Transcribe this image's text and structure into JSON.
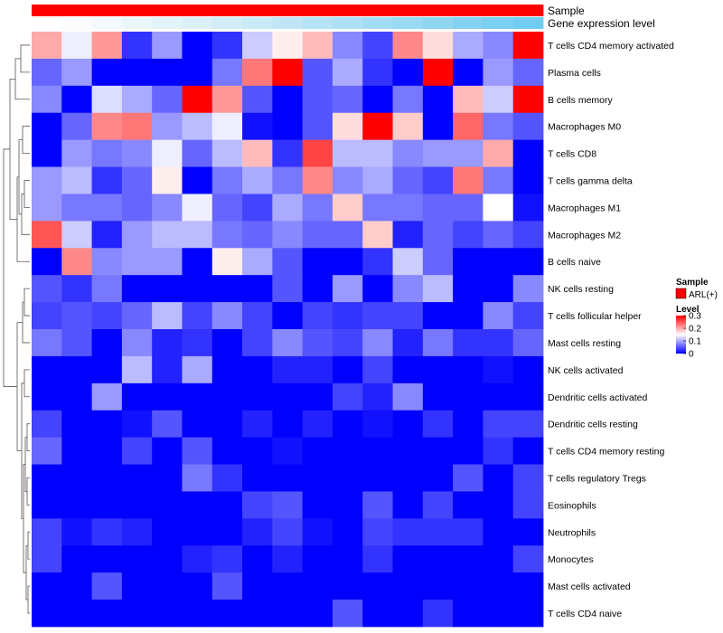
{
  "chart_data": {
    "type": "heatmap",
    "annotations": [
      {
        "name": "Sample",
        "colors": [
          "#ff0000",
          "#ff0000",
          "#ff0000",
          "#ff0000",
          "#ff0000",
          "#ff0000",
          "#ff0000",
          "#ff0000",
          "#ff0000",
          "#ff0000",
          "#ff0000",
          "#ff0000",
          "#ff0000",
          "#ff0000",
          "#ff0000",
          "#ff0000",
          "#ff0000"
        ]
      },
      {
        "name": "Gene expression level",
        "colors": [
          "#ffffff",
          "#fafcfd",
          "#f3f9fc",
          "#ebf6fb",
          "#e3f3fa",
          "#dbf0f9",
          "#d2edf8",
          "#c9eaf7",
          "#c0e6f6",
          "#b6e3f5",
          "#ade0f4",
          "#a3ddf3",
          "#99d9f2",
          "#8fd6f1",
          "#85d2f0",
          "#7bcff0",
          "#72ccf0"
        ]
      }
    ],
    "rows": [
      "T cells CD4 memory activated",
      "Plasma cells",
      "B cells memory",
      "Macrophages M0",
      "T cells CD8",
      "T cells gamma delta",
      "Macrophages M1",
      "Macrophages M2",
      "B cells naive",
      "NK cells resting",
      "T cells follicular helper",
      "Mast cells resting",
      "NK cells activated",
      "Dendritic cells activated",
      "Dendritic cells resting",
      "T cells CD4 memory resting",
      "T cells regulatory  Tregs",
      "Eosinophils",
      "Neutrophils",
      "Monocytes",
      "Mast cells activated",
      "T cells CD4 naive"
    ],
    "values": [
      [
        0.2,
        0.14,
        0.21,
        0.03,
        0.09,
        0.0,
        0.03,
        0.12,
        0.16,
        0.19,
        0.08,
        0.04,
        0.22,
        0.17,
        0.1,
        0.08,
        0.3
      ],
      [
        0.06,
        0.09,
        0.0,
        0.0,
        0.0,
        0.0,
        0.07,
        0.23,
        0.3,
        0.05,
        0.1,
        0.03,
        0.0,
        0.3,
        0.0,
        0.09,
        0.06
      ],
      [
        0.08,
        0.0,
        0.13,
        0.1,
        0.06,
        0.3,
        0.21,
        0.05,
        0.0,
        0.05,
        0.06,
        0.0,
        0.07,
        0.0,
        0.19,
        0.12,
        0.3
      ],
      [
        0.0,
        0.06,
        0.22,
        0.23,
        0.09,
        0.11,
        0.14,
        0.01,
        0.0,
        0.05,
        0.17,
        0.3,
        0.18,
        0.0,
        0.24,
        0.07,
        0.05
      ],
      [
        0.0,
        0.09,
        0.07,
        0.08,
        0.14,
        0.06,
        0.11,
        0.19,
        0.03,
        0.26,
        0.11,
        0.11,
        0.08,
        0.09,
        0.09,
        0.2,
        0.0
      ],
      [
        0.09,
        0.11,
        0.03,
        0.06,
        0.16,
        0.0,
        0.07,
        0.1,
        0.07,
        0.22,
        0.08,
        0.1,
        0.06,
        0.04,
        0.23,
        0.07,
        0.0
      ],
      [
        0.09,
        0.07,
        0.07,
        0.06,
        0.08,
        0.14,
        0.06,
        0.04,
        0.1,
        0.07,
        0.18,
        0.07,
        0.07,
        0.06,
        0.06,
        0.15,
        0.01
      ],
      [
        0.25,
        0.12,
        0.02,
        0.09,
        0.11,
        0.11,
        0.07,
        0.06,
        0.08,
        0.06,
        0.06,
        0.18,
        0.02,
        0.06,
        0.04,
        0.06,
        0.04
      ],
      [
        0.0,
        0.22,
        0.08,
        0.09,
        0.09,
        0.0,
        0.16,
        0.1,
        0.05,
        0.0,
        0.0,
        0.03,
        0.12,
        0.06,
        0.0,
        0.0,
        0.0
      ],
      [
        0.05,
        0.03,
        0.07,
        0.0,
        0.0,
        0.0,
        0.0,
        0.0,
        0.05,
        0.0,
        0.09,
        0.0,
        0.08,
        0.11,
        0.0,
        0.0,
        0.08
      ],
      [
        0.04,
        0.05,
        0.04,
        0.06,
        0.11,
        0.04,
        0.08,
        0.04,
        0.0,
        0.04,
        0.03,
        0.04,
        0.04,
        0.0,
        0.0,
        0.08,
        0.04
      ],
      [
        0.07,
        0.05,
        0.0,
        0.08,
        0.02,
        0.03,
        0.0,
        0.04,
        0.08,
        0.05,
        0.04,
        0.08,
        0.02,
        0.07,
        0.03,
        0.03,
        0.06
      ],
      [
        0.0,
        0.0,
        0.0,
        0.11,
        0.02,
        0.1,
        0.0,
        0.0,
        0.02,
        0.02,
        0.0,
        0.04,
        0.0,
        0.0,
        0.0,
        0.01,
        0.0
      ],
      [
        0.0,
        0.0,
        0.09,
        0.0,
        0.0,
        0.0,
        0.0,
        0.0,
        0.0,
        0.0,
        0.04,
        0.02,
        0.08,
        0.0,
        0.0,
        0.0,
        0.0
      ],
      [
        0.04,
        0.0,
        0.0,
        0.01,
        0.05,
        0.0,
        0.0,
        0.02,
        0.0,
        0.02,
        0.0,
        0.01,
        0.0,
        0.03,
        0.0,
        0.04,
        0.04
      ],
      [
        0.06,
        0.0,
        0.0,
        0.04,
        0.0,
        0.05,
        0.0,
        0.0,
        0.01,
        0.0,
        0.0,
        0.0,
        0.0,
        0.0,
        0.0,
        0.03,
        0.0
      ],
      [
        0.0,
        0.0,
        0.0,
        0.0,
        0.0,
        0.07,
        0.03,
        0.0,
        0.0,
        0.0,
        0.0,
        0.0,
        0.0,
        0.0,
        0.05,
        0.0,
        0.04
      ],
      [
        0.0,
        0.0,
        0.0,
        0.0,
        0.0,
        0.0,
        0.0,
        0.04,
        0.05,
        0.0,
        0.0,
        0.05,
        0.0,
        0.04,
        0.0,
        0.0,
        0.04
      ],
      [
        0.04,
        0.01,
        0.03,
        0.02,
        0.0,
        0.0,
        0.0,
        0.02,
        0.04,
        0.01,
        0.0,
        0.04,
        0.03,
        0.03,
        0.03,
        0.0,
        0.0
      ],
      [
        0.04,
        0.0,
        0.0,
        0.0,
        0.0,
        0.02,
        0.03,
        0.0,
        0.02,
        0.0,
        0.0,
        0.03,
        0.0,
        0.0,
        0.0,
        0.0,
        0.04
      ],
      [
        0.0,
        0.0,
        0.05,
        0.0,
        0.0,
        0.0,
        0.05,
        0.0,
        0.0,
        0.0,
        0.0,
        0.0,
        0.0,
        0.0,
        0.0,
        0.0,
        0.0
      ],
      [
        0.0,
        0.0,
        0.0,
        0.0,
        0.0,
        0.0,
        0.0,
        0.0,
        0.0,
        0.0,
        0.05,
        0.0,
        0.0,
        0.03,
        0.0,
        0.0,
        0.0
      ]
    ],
    "color_scale": {
      "min": 0,
      "mid": 0.15,
      "max": 0.3,
      "low_color": "#0000ff",
      "mid_color": "#ffffff",
      "high_color": "#ff0000"
    },
    "legend": {
      "sample_title": "Sample",
      "sample_entry": "ARL(+)",
      "sample_color": "#ff0000",
      "level_title": "Level",
      "level_ticks": [
        0.3,
        0.2,
        0.1,
        0
      ]
    }
  }
}
